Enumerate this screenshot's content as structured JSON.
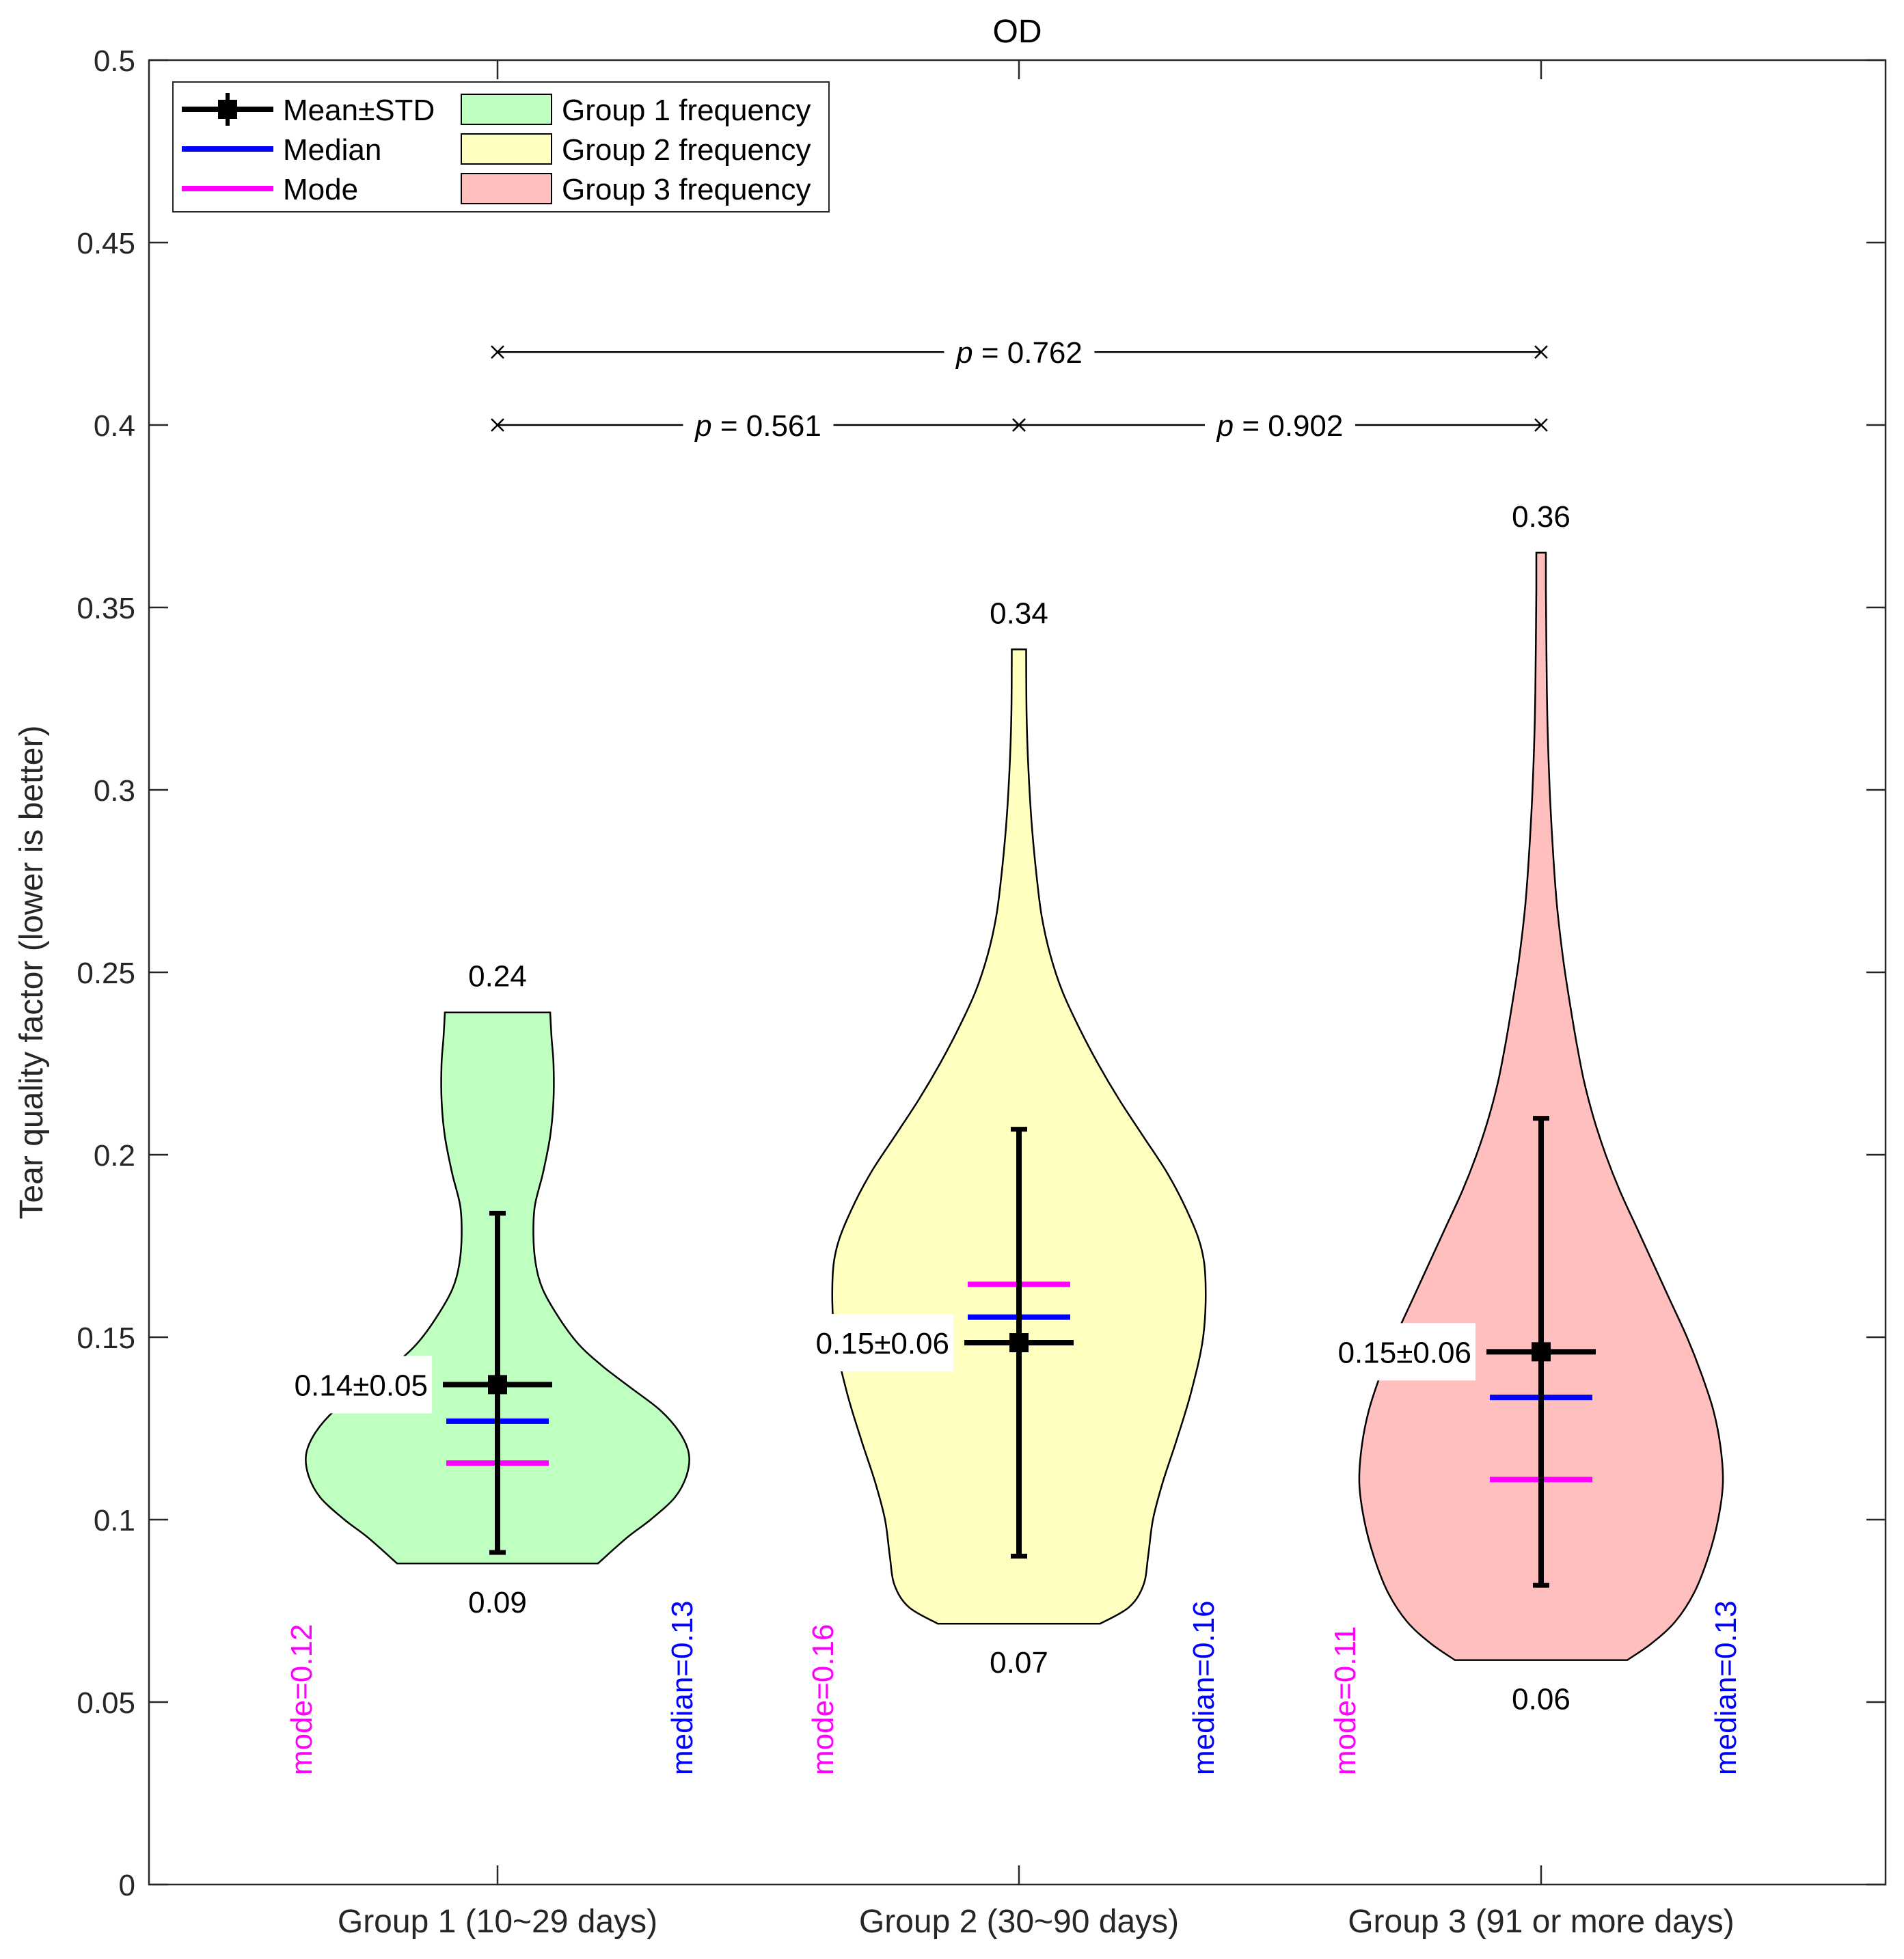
{
  "chart_data": {
    "type": "violin",
    "title": "OD",
    "xlabel": "",
    "ylabel": "Tear quality factor (lower is better)",
    "ylim": [
      0,
      0.5
    ],
    "yticks": [
      0,
      0.05,
      0.1,
      0.15,
      0.2,
      0.25,
      0.3,
      0.35,
      0.4,
      0.45,
      0.5
    ],
    "ytick_labels": [
      "0",
      "0.05",
      "0.1",
      "0.15",
      "0.2",
      "0.25",
      "0.3",
      "0.35",
      "0.4",
      "0.45",
      "0.5"
    ],
    "categories": [
      "Group 1 (10~29 days)",
      "Group 2 (30~90 days)",
      "Group 3 (91 or more days)"
    ],
    "colors": {
      "mean_std": "#000000",
      "median": "#0000ff",
      "mode": "#ff00ff",
      "outline": "#000000"
    },
    "legend": {
      "placement": "top-left",
      "entries": [
        {
          "label": "Mean±STD",
          "kind": "errorbar",
          "color": "#000000"
        },
        {
          "label": "Median",
          "kind": "line",
          "color": "#0000ff"
        },
        {
          "label": "Mode",
          "kind": "line",
          "color": "#ff00ff"
        },
        {
          "label": "Group 1 frequency",
          "kind": "patch",
          "color": "#bfffbf"
        },
        {
          "label": "Group 2 frequency",
          "kind": "patch",
          "color": "#ffffbf"
        },
        {
          "label": "Group 3 frequency",
          "kind": "patch",
          "color": "#ffbfbf"
        }
      ]
    },
    "series": [
      {
        "name": "Group 1 frequency",
        "fill": "#bfffbf",
        "min": 0.088,
        "max": 0.239,
        "min_label": "0.09",
        "max_label": "0.24",
        "mean": 0.137,
        "std_low": 0.091,
        "std_high": 0.184,
        "mean_std_label": "0.14±0.05",
        "median": 0.127,
        "mode": 0.1155,
        "median_label": "median=0.13",
        "mode_label": "mode=0.12",
        "density": [
          [
            0.088,
            0.21
          ],
          [
            0.095,
            0.27
          ],
          [
            0.1,
            0.32
          ],
          [
            0.106,
            0.37
          ],
          [
            0.112,
            0.395
          ],
          [
            0.118,
            0.4
          ],
          [
            0.124,
            0.38
          ],
          [
            0.13,
            0.34
          ],
          [
            0.136,
            0.28
          ],
          [
            0.142,
            0.22
          ],
          [
            0.148,
            0.17
          ],
          [
            0.155,
            0.13
          ],
          [
            0.163,
            0.095
          ],
          [
            0.17,
            0.08
          ],
          [
            0.178,
            0.075
          ],
          [
            0.186,
            0.078
          ],
          [
            0.195,
            0.095
          ],
          [
            0.205,
            0.11
          ],
          [
            0.215,
            0.117
          ],
          [
            0.225,
            0.117
          ],
          [
            0.232,
            0.113
          ],
          [
            0.239,
            0.11
          ]
        ]
      },
      {
        "name": "Group 2 frequency",
        "fill": "#ffffbf",
        "min": 0.0715,
        "max": 0.3385,
        "min_label": "0.07",
        "max_label": "0.34",
        "mean": 0.1485,
        "std_low": 0.09,
        "std_high": 0.207,
        "mean_std_label": "0.15±0.06",
        "median": 0.1555,
        "mode": 0.1645,
        "median_label": "median=0.16",
        "mode_label": "mode=0.16",
        "density": [
          [
            0.0715,
            0.17
          ],
          [
            0.076,
            0.23
          ],
          [
            0.082,
            0.26
          ],
          [
            0.09,
            0.27
          ],
          [
            0.1,
            0.28
          ],
          [
            0.11,
            0.3
          ],
          [
            0.122,
            0.33
          ],
          [
            0.135,
            0.36
          ],
          [
            0.15,
            0.385
          ],
          [
            0.165,
            0.39
          ],
          [
            0.175,
            0.38
          ],
          [
            0.185,
            0.35
          ],
          [
            0.195,
            0.31
          ],
          [
            0.205,
            0.26
          ],
          [
            0.215,
            0.21
          ],
          [
            0.225,
            0.165
          ],
          [
            0.235,
            0.125
          ],
          [
            0.245,
            0.09
          ],
          [
            0.255,
            0.065
          ],
          [
            0.265,
            0.048
          ],
          [
            0.275,
            0.038
          ],
          [
            0.29,
            0.027
          ],
          [
            0.305,
            0.02
          ],
          [
            0.32,
            0.016
          ],
          [
            0.3385,
            0.015
          ]
        ]
      },
      {
        "name": "Group 3 frequency",
        "fill": "#ffbfbf",
        "min": 0.0615,
        "max": 0.365,
        "min_label": "0.06",
        "max_label": "0.36",
        "mean": 0.146,
        "std_low": 0.082,
        "std_high": 0.21,
        "mean_std_label": "0.15±0.06",
        "median": 0.1335,
        "mode": 0.111,
        "median_label": "median=0.13",
        "mode_label": "mode=0.11",
        "density": [
          [
            0.0615,
            0.18
          ],
          [
            0.066,
            0.23
          ],
          [
            0.072,
            0.28
          ],
          [
            0.08,
            0.32
          ],
          [
            0.09,
            0.35
          ],
          [
            0.1,
            0.37
          ],
          [
            0.11,
            0.38
          ],
          [
            0.12,
            0.375
          ],
          [
            0.13,
            0.36
          ],
          [
            0.14,
            0.335
          ],
          [
            0.15,
            0.305
          ],
          [
            0.16,
            0.27
          ],
          [
            0.17,
            0.235
          ],
          [
            0.18,
            0.2
          ],
          [
            0.19,
            0.165
          ],
          [
            0.2,
            0.135
          ],
          [
            0.21,
            0.11
          ],
          [
            0.22,
            0.09
          ],
          [
            0.23,
            0.075
          ],
          [
            0.24,
            0.062
          ],
          [
            0.25,
            0.05
          ],
          [
            0.26,
            0.04
          ],
          [
            0.27,
            0.032
          ],
          [
            0.285,
            0.024
          ],
          [
            0.3,
            0.018
          ],
          [
            0.32,
            0.013
          ],
          [
            0.34,
            0.011
          ],
          [
            0.355,
            0.01
          ],
          [
            0.365,
            0.01
          ]
        ]
      }
    ],
    "significance": [
      {
        "from": 0,
        "to": 2,
        "y": 0.42,
        "p_label": "p",
        "p_value": " = 0.762"
      },
      {
        "from": 0,
        "to": 1,
        "y": 0.4,
        "p_label": "p",
        "p_value": " = 0.561"
      },
      {
        "from": 1,
        "to": 2,
        "y": 0.4,
        "p_label": "p",
        "p_value": " = 0.902"
      }
    ]
  }
}
